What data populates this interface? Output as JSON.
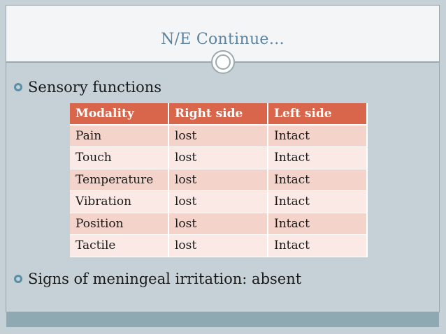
{
  "slide": {
    "title": "N/E Continue…",
    "bullets": [
      "Sensory functions",
      "Signs of meningeal irritation: absent"
    ]
  },
  "table": {
    "headers": [
      "Modality",
      "Right  side",
      "Left  side"
    ],
    "rows": [
      [
        "Pain",
        "lost",
        "Intact"
      ],
      [
        "Touch",
        "lost",
        "Intact"
      ],
      [
        "Temperature",
        "lost",
        "Intact"
      ],
      [
        "Vibration",
        "lost",
        "Intact"
      ],
      [
        "Position",
        "lost",
        "Intact"
      ],
      [
        "Tactile",
        "lost",
        "Intact"
      ]
    ]
  },
  "colors": {
    "background": "#c6d1d7",
    "title": "#5c83a0",
    "header": "#d9654b",
    "row_dark": "#f4d3cb",
    "row_light": "#fae9e5",
    "bullet": "#5a8fa8"
  }
}
